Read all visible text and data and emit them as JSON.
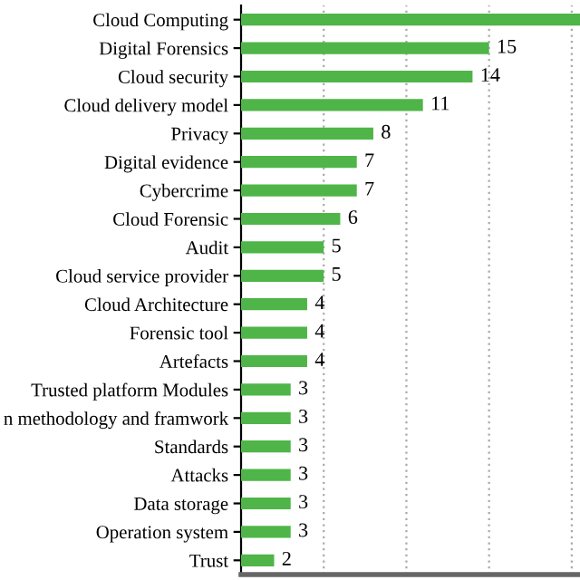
{
  "chart_data": {
    "type": "bar",
    "orientation": "horizontal",
    "categories": [
      "Cloud Computing",
      "Digital Forensics",
      "Cloud security",
      "Cloud delivery model",
      "Privacy",
      "Digital evidence",
      "Cybercrime",
      "Cloud Forensic",
      "Audit",
      "Cloud service provider",
      "Cloud Architecture",
      "Forensic tool",
      "Artefacts",
      "Trusted platform Modules",
      "n methodology and framwork",
      "Standards",
      "Attacks",
      "Data storage",
      "Operation system",
      "Trust"
    ],
    "values": [
      20.5,
      15,
      14,
      11,
      8,
      7,
      7,
      6,
      5,
      5,
      4,
      4,
      4,
      3,
      3,
      3,
      3,
      3,
      3,
      2
    ],
    "value_labels": [
      null,
      "15",
      "14",
      "11",
      "8",
      "7",
      "7",
      "6",
      "5",
      "5",
      "4",
      "4",
      "4",
      "3",
      "3",
      "3",
      "3",
      "3",
      "3",
      "2"
    ],
    "color": "#4fb548",
    "xlim": [
      0,
      20.5
    ],
    "xticks": [
      {
        "value": 0,
        "label": null
      },
      {
        "value": 5,
        "label": null
      },
      {
        "value": 10,
        "label": null
      },
      {
        "value": 15,
        "label": null
      },
      {
        "value": 20,
        "label": null
      }
    ],
    "grid": "x"
  }
}
